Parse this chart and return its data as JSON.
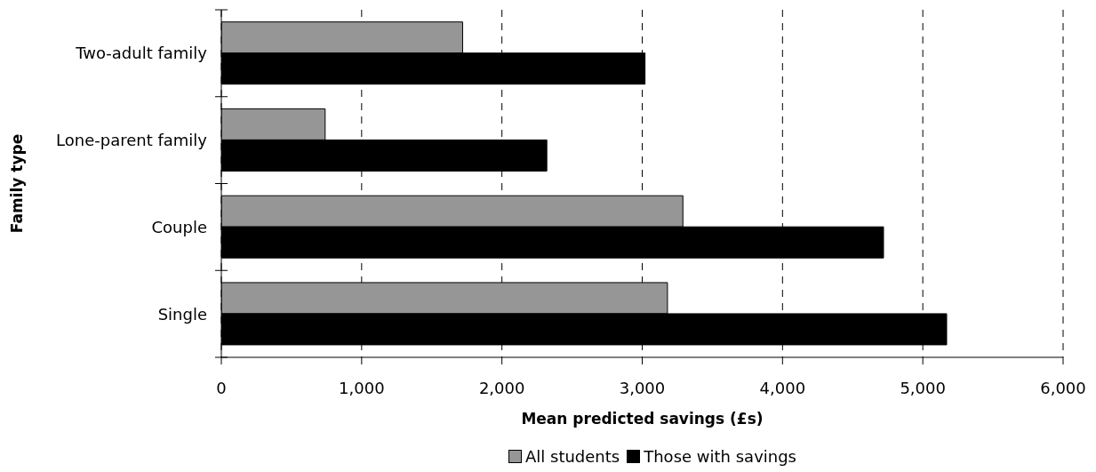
{
  "chart_data": {
    "type": "bar",
    "orientation": "horizontal",
    "xlabel": "Mean predicted savings (£s)",
    "ylabel": "Family type",
    "categories": [
      "Two-adult family",
      "Lone-parent family",
      "Couple",
      "Single"
    ],
    "series": [
      {
        "name": "All students",
        "color": "#969696",
        "values": [
          1720,
          740,
          3290,
          3180
        ]
      },
      {
        "name": "Those with savings",
        "color": "#000000",
        "values": [
          3020,
          2320,
          4720,
          5170
        ]
      }
    ],
    "xlim": [
      0,
      6000
    ],
    "xticks": [
      0,
      {
        "value": 1000,
        "label": "1,000"
      },
      {
        "value": 2000,
        "label": "2,000"
      },
      {
        "value": 3000,
        "label": "3,000"
      },
      {
        "value": 4000,
        "label": "4,000"
      },
      {
        "value": 5000,
        "label": "5,000"
      },
      {
        "value": 6000,
        "label": "6,000"
      }
    ],
    "grid": "x",
    "legend": "bottom"
  }
}
